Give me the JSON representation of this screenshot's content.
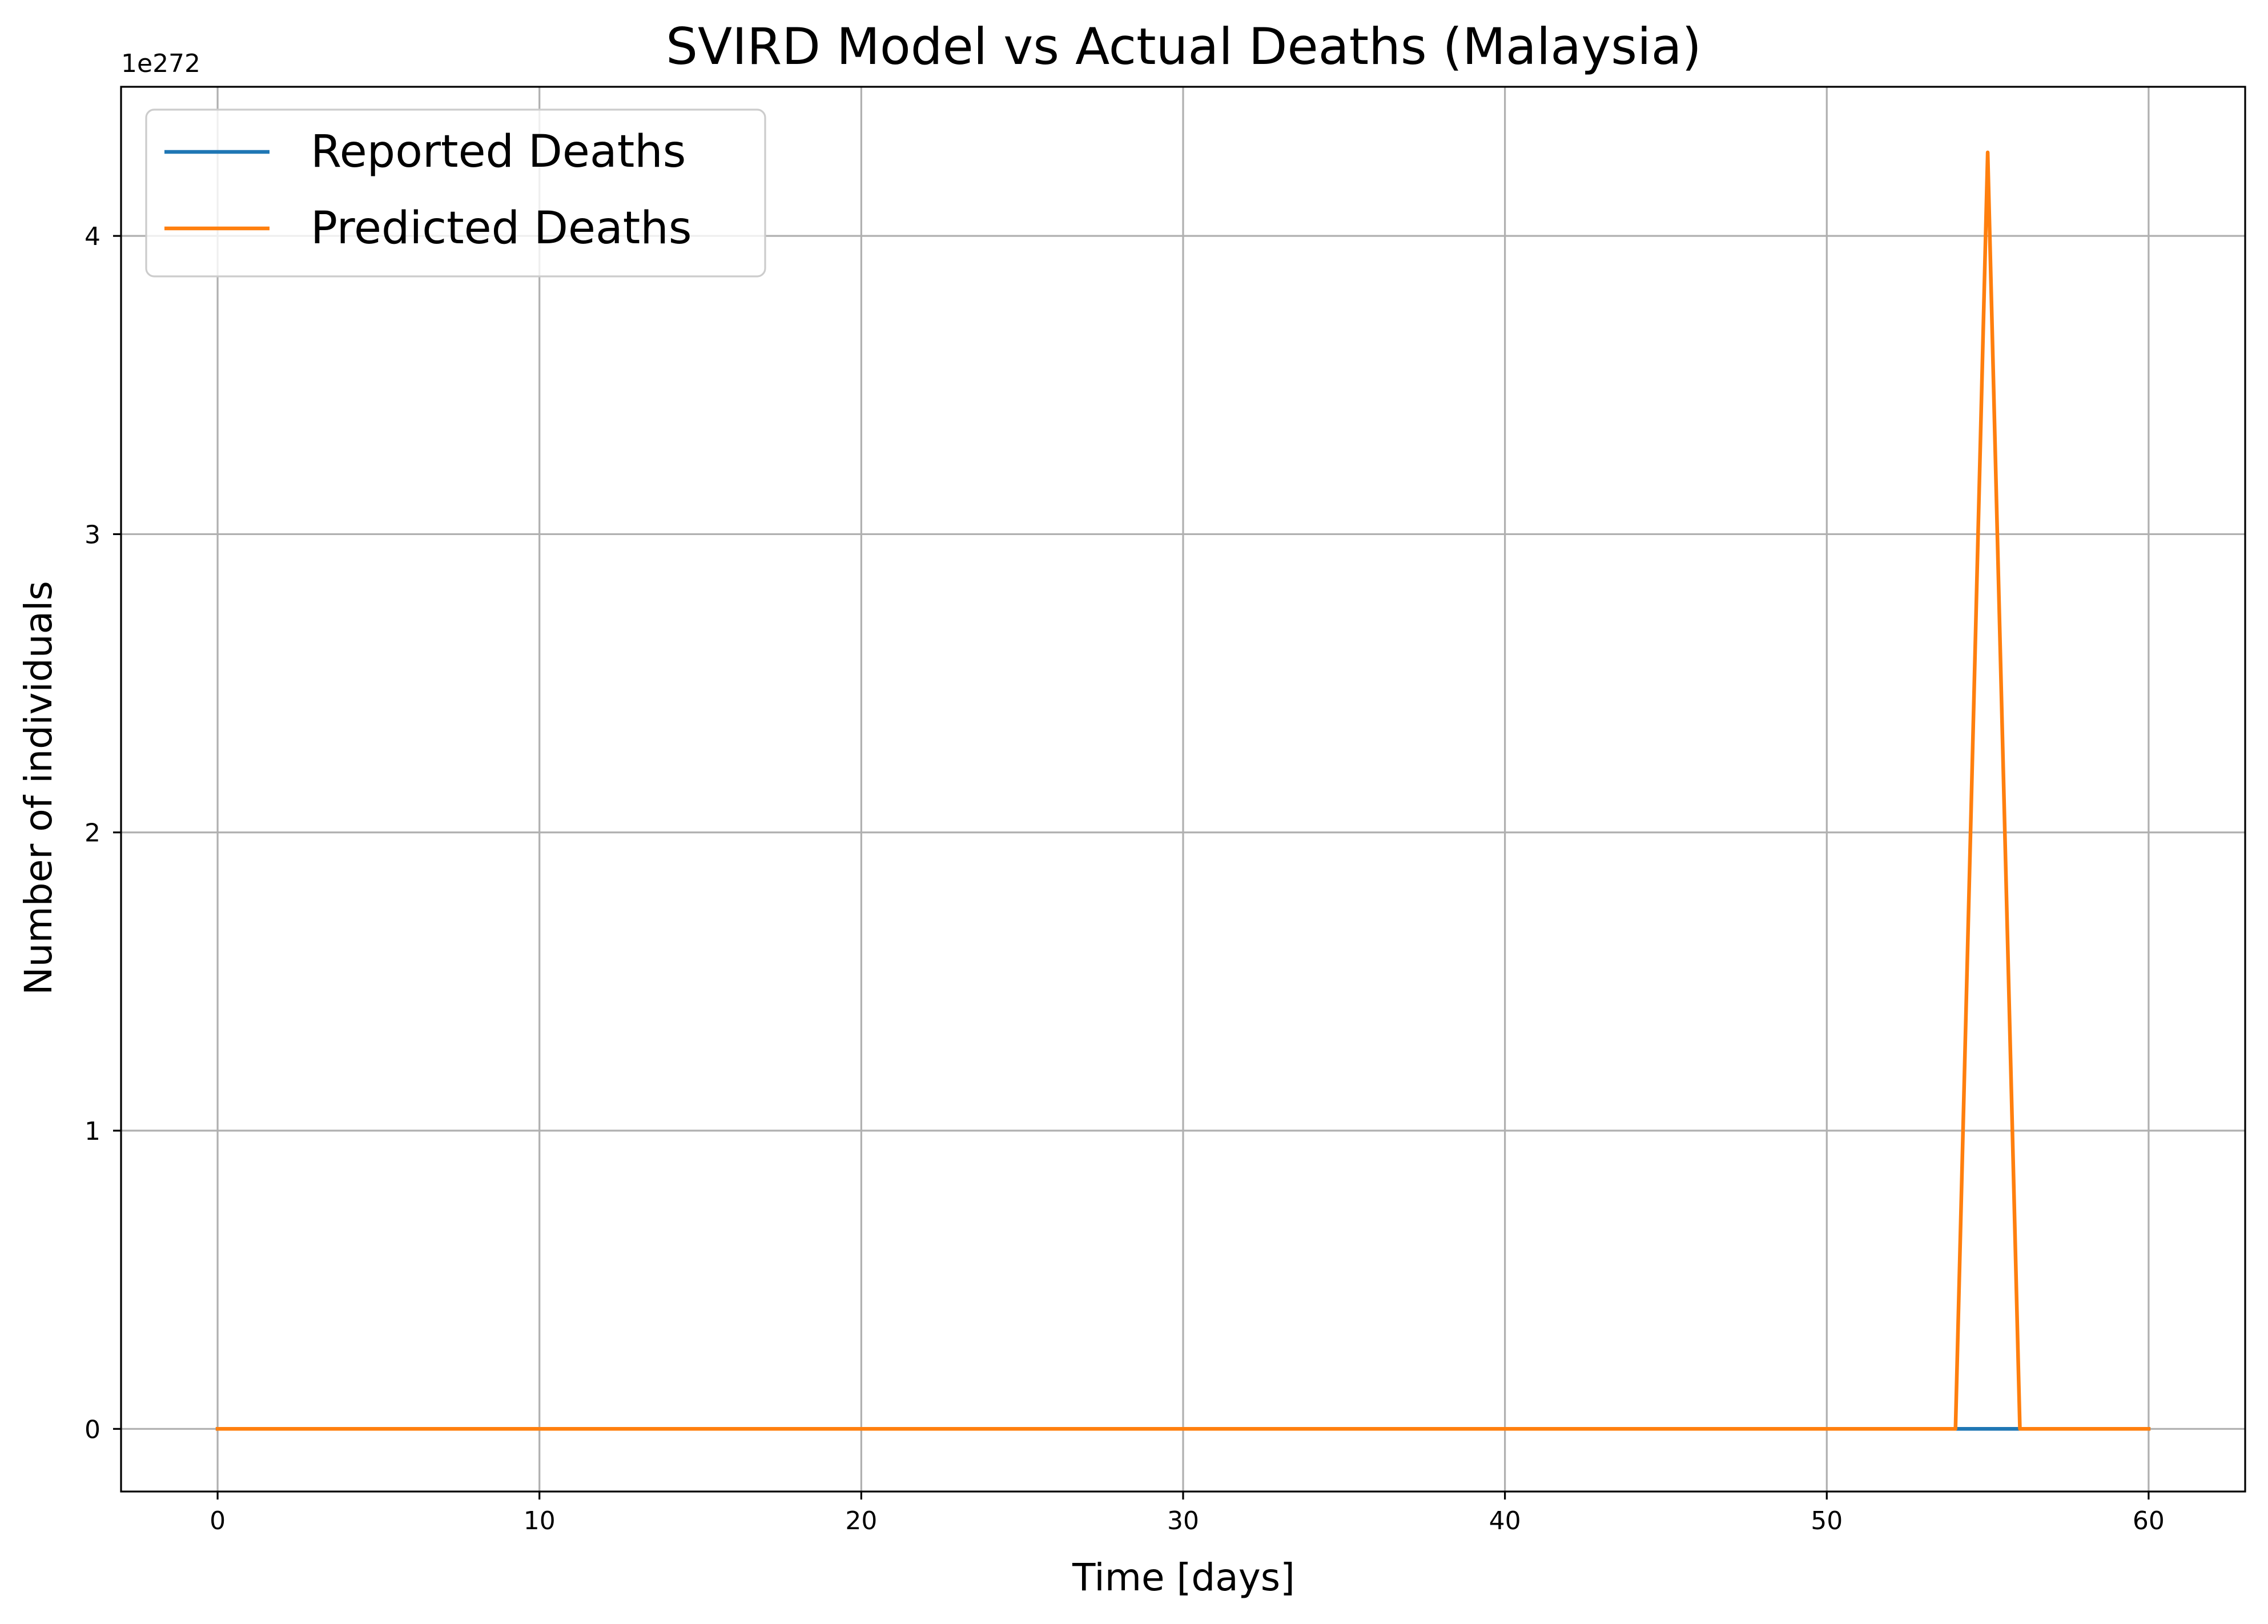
{
  "chart_data": {
    "type": "line",
    "title": "SVIRD Model vs Actual Deaths (Malaysia)",
    "xlabel": "Time [days]",
    "ylabel": "Number of individuals",
    "y_offset_label": "1e272",
    "xlim": [
      -3,
      63
    ],
    "ylim": [
      -0.21,
      4.5
    ],
    "xticks": [
      0,
      10,
      20,
      30,
      40,
      50,
      60
    ],
    "xtick_labels": [
      "0",
      "10",
      "20",
      "30",
      "40",
      "50",
      "60"
    ],
    "yticks": [
      0,
      1,
      2,
      3,
      4
    ],
    "ytick_labels": [
      "0",
      "1",
      "2",
      "3",
      "4"
    ],
    "grid": true,
    "legend_position": "upper-left",
    "series": [
      {
        "name": "Reported Deaths",
        "color": "#1f77b4",
        "x": [
          0,
          54,
          55,
          56,
          60
        ],
        "y": [
          0,
          0,
          0,
          0,
          0
        ]
      },
      {
        "name": "Predicted Deaths",
        "color": "#ff7f0e",
        "x": [
          0,
          54,
          55,
          56,
          60
        ],
        "y": [
          0,
          0,
          4.28,
          0,
          0
        ]
      }
    ]
  }
}
